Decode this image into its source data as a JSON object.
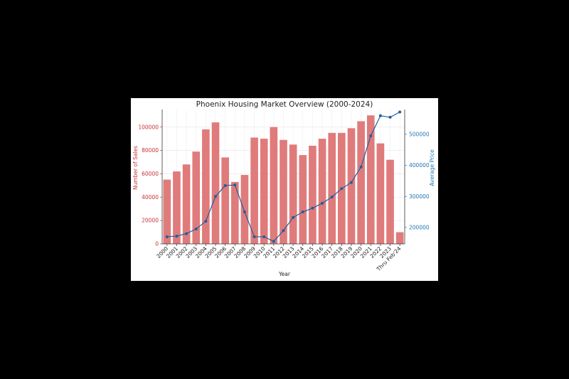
{
  "chart_data": {
    "type": "bar",
    "title": "Phoenix Housing Market Overview (2000-2024)",
    "xlabel": "Year",
    "ylabel": "Number of Sales",
    "y2label": "Average Price",
    "categories": [
      "2000",
      "2001",
      "2002",
      "2003",
      "2004",
      "2005",
      "2006",
      "2007",
      "2008",
      "2009",
      "2010",
      "2011",
      "2012",
      "2013",
      "2014",
      "2015",
      "2016",
      "2017",
      "2018",
      "2019",
      "2020",
      "2021",
      "2022",
      "2023",
      "Thru Feb'24"
    ],
    "ylim": [
      0,
      115000
    ],
    "y2lim": [
      147000,
      580000
    ],
    "yticks": [
      0,
      20000,
      40000,
      60000,
      80000,
      100000
    ],
    "y2ticks": [
      200000,
      300000,
      400000,
      500000
    ],
    "grid": true,
    "series": [
      {
        "name": "Number of Sales",
        "type": "bar",
        "axis": "left",
        "color": "#e07b7b",
        "values": [
          55000,
          62000,
          68000,
          79000,
          98000,
          104000,
          74000,
          53000,
          59000,
          91000,
          90000,
          100000,
          89000,
          85000,
          76000,
          84000,
          90000,
          95000,
          95000,
          99000,
          105000,
          110000,
          86000,
          72000,
          10000
        ]
      },
      {
        "name": "Average Price",
        "type": "line",
        "axis": "right",
        "color": "#1f5f9e",
        "values": [
          170000,
          172000,
          180000,
          195000,
          220000,
          300000,
          335000,
          337000,
          250000,
          170000,
          170000,
          155000,
          190000,
          232000,
          250000,
          262000,
          278000,
          298000,
          325000,
          345000,
          395000,
          495000,
          560000,
          555000,
          572000
        ]
      }
    ],
    "colors": {
      "left_axis": "#c83232",
      "right_axis": "#1f77b4",
      "bar": "#e07b7b",
      "line": "#1f5f9e"
    }
  }
}
